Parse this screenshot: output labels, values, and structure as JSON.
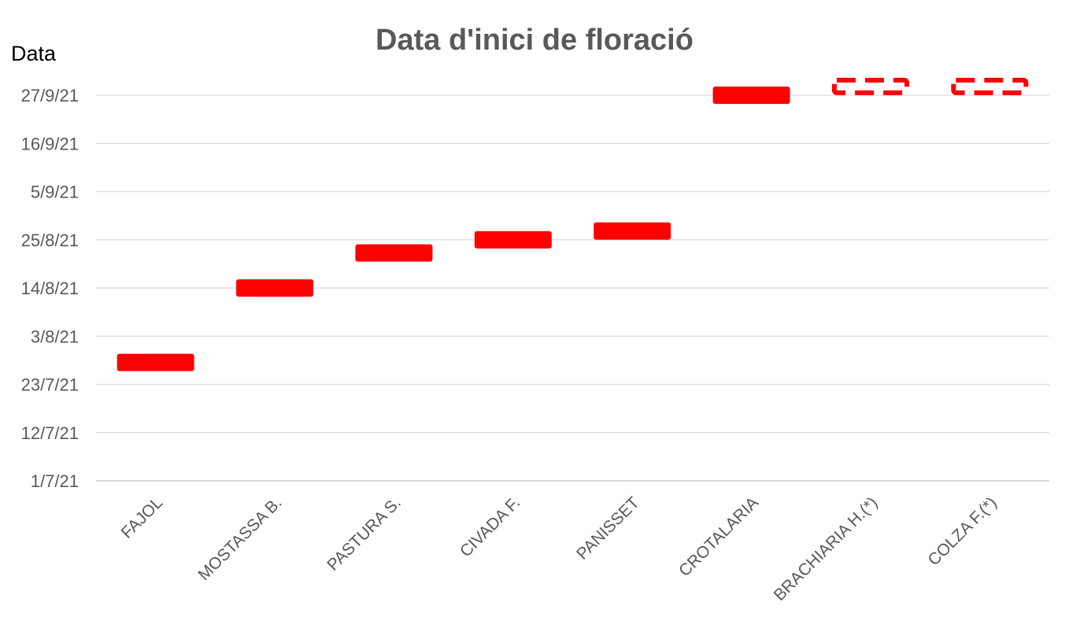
{
  "chart_data": {
    "type": "bar",
    "title": "Data d'inici de floració",
    "ylabel": "Data",
    "xlabel": "",
    "y_ticks": [
      "1/7/21",
      "12/7/21",
      "23/7/21",
      "3/8/21",
      "14/8/21",
      "25/8/21",
      "5/9/21",
      "16/9/21",
      "27/9/21"
    ],
    "ylim": [
      "2021-07-01",
      "2021-09-27"
    ],
    "categories": [
      "FAJOL",
      "MOSTASSA B.",
      "PASTURA S.",
      "CIVADA F.",
      "PANISSET",
      "CROTALARIA",
      "BRACHIARIA H.(*)",
      "COLZA F.(*)"
    ],
    "values": [
      "2021-07-28",
      "2021-08-14",
      "2021-08-22",
      "2021-08-25",
      "2021-08-27",
      "2021-09-27",
      "2021-09-29",
      "2021-09-29"
    ],
    "estimated": [
      false,
      false,
      false,
      false,
      false,
      false,
      true,
      true
    ],
    "grid": true,
    "bar_color": "#ff0000"
  }
}
